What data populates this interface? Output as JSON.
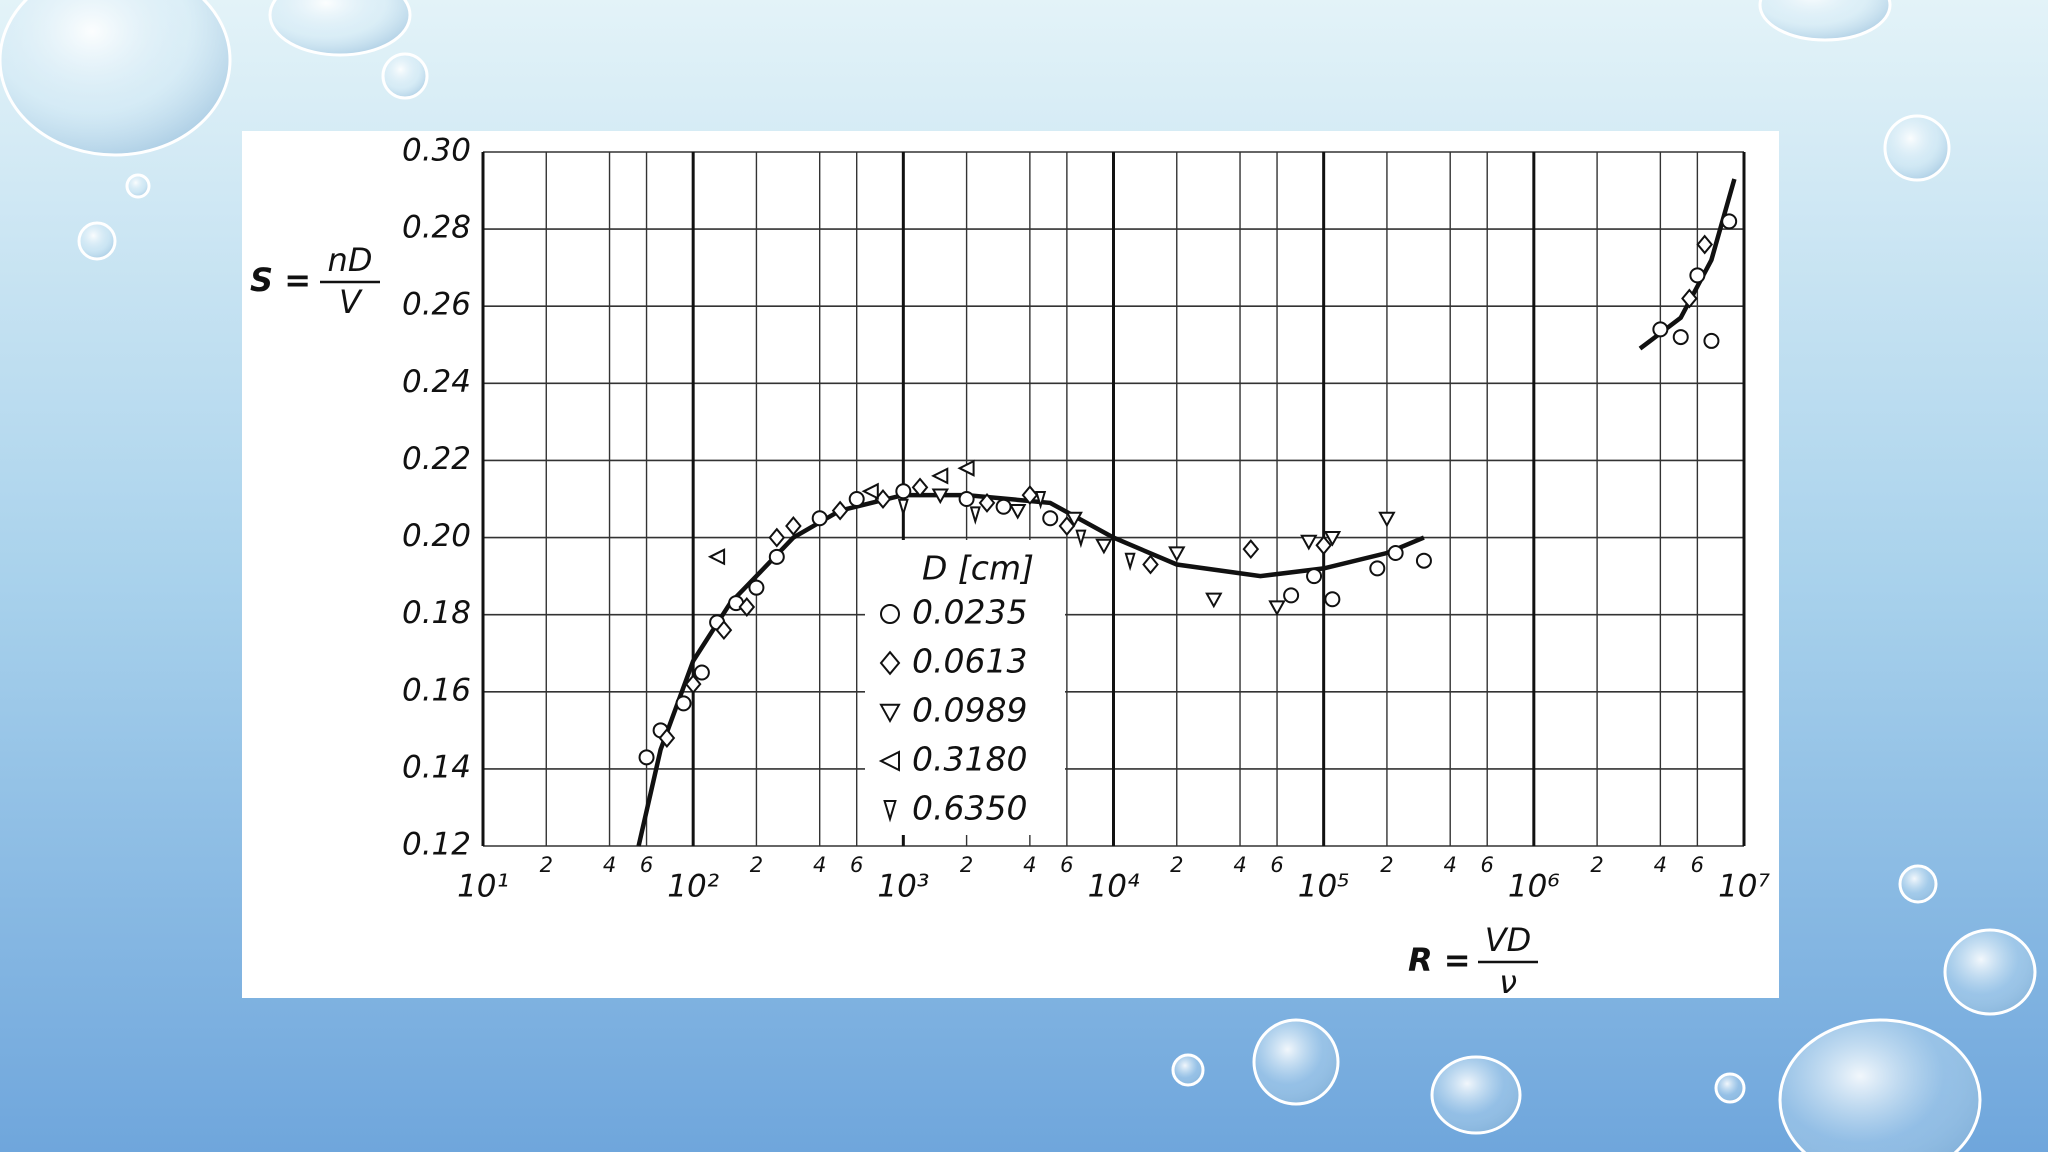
{
  "chart_data": {
    "type": "scatter",
    "xscale": "log",
    "grid": true,
    "xlim": [
      10,
      10000000
    ],
    "ylim": [
      0.12,
      0.3
    ],
    "yticks": [
      0.12,
      0.14,
      0.16,
      0.18,
      {
        "value": 0.2,
        "label": "0.20"
      },
      0.22,
      0.24,
      0.26,
      0.28,
      {
        "value": 0.3,
        "label": "0.30"
      }
    ],
    "xticks": [
      {
        "value": 10,
        "label": "10¹"
      },
      {
        "value": 100,
        "label": "10²"
      },
      {
        "value": 1000,
        "label": "10³"
      },
      {
        "value": 10000,
        "label": "10⁴"
      },
      {
        "value": 100000,
        "label": "10⁵"
      },
      {
        "value": 1000000,
        "label": "10⁶"
      },
      {
        "value": 10000000,
        "label": "10⁷"
      }
    ],
    "xminor_ticks": [
      {
        "value": 20,
        "label": "2"
      },
      {
        "value": 40,
        "label": "4"
      },
      {
        "value": 60,
        "label": "6"
      },
      {
        "value": 200,
        "label": "2"
      },
      {
        "value": 400,
        "label": "4"
      },
      {
        "value": 600,
        "label": "6"
      },
      {
        "value": 2000,
        "label": "2"
      },
      {
        "value": 4000,
        "label": "4"
      },
      {
        "value": 6000,
        "label": "6"
      },
      {
        "value": 20000,
        "label": "2"
      },
      {
        "value": 40000,
        "label": "4"
      },
      {
        "value": 60000,
        "label": "6"
      },
      {
        "value": 200000,
        "label": "2"
      },
      {
        "value": 400000,
        "label": "4"
      },
      {
        "value": 600000,
        "label": "6"
      },
      {
        "value": 2000000,
        "label": "2"
      },
      {
        "value": 4000000,
        "label": "4"
      },
      {
        "value": 6000000,
        "label": "6"
      }
    ],
    "ylabel": {
      "lhs": "S =",
      "num": "nD",
      "den": "V"
    },
    "xlabel": {
      "lhs": "R =",
      "num": "VD",
      "den": "ν"
    },
    "legend_title": "D [cm]",
    "series": [
      {
        "name": "0.0235",
        "marker": "circle",
        "color": "#111111",
        "x": [
          60,
          70,
          90,
          110,
          130,
          160,
          200,
          250,
          400,
          600,
          1000,
          2000,
          3000,
          5000,
          70000,
          90000,
          110000,
          180000,
          220000,
          300000,
          4000000,
          5000000,
          6000000,
          7000000,
          8500000
        ],
        "y": [
          0.143,
          0.15,
          0.157,
          0.165,
          0.178,
          0.183,
          0.187,
          0.195,
          0.205,
          0.21,
          0.212,
          0.21,
          0.208,
          0.205,
          0.185,
          0.19,
          0.184,
          0.192,
          0.196,
          0.194,
          0.254,
          0.252,
          0.268,
          0.251,
          0.282
        ]
      },
      {
        "name": "0.0613",
        "marker": "diamond",
        "color": "#111111",
        "x": [
          75,
          100,
          140,
          180,
          250,
          300,
          500,
          800,
          1200,
          2500,
          4000,
          6000,
          15000,
          45000,
          100000,
          5500000,
          6500000
        ],
        "y": [
          0.148,
          0.162,
          0.176,
          0.182,
          0.2,
          0.203,
          0.207,
          0.21,
          0.213,
          0.209,
          0.211,
          0.203,
          0.193,
          0.197,
          0.198,
          0.262,
          0.276
        ]
      },
      {
        "name": "0.0989",
        "marker": "triangle-down",
        "color": "#111111",
        "x": [
          1500,
          3500,
          6500,
          9000,
          20000,
          30000,
          60000,
          85000,
          110000,
          200000
        ],
        "y": [
          0.211,
          0.207,
          0.205,
          0.198,
          0.196,
          0.184,
          0.182,
          0.199,
          0.2,
          0.205
        ]
      },
      {
        "name": "0.3180",
        "marker": "triangle-left",
        "color": "#111111",
        "x": [
          130,
          700,
          1500,
          2000
        ],
        "y": [
          0.195,
          0.212,
          0.216,
          0.218
        ]
      },
      {
        "name": "0.6350",
        "marker": "triangle-down-narrow",
        "color": "#111111",
        "x": [
          1000,
          2200,
          4500,
          7000,
          12000
        ],
        "y": [
          0.208,
          0.206,
          0.21,
          0.2,
          0.194
        ]
      }
    ],
    "curve": {
      "color": "#111111",
      "x": [
        55,
        70,
        100,
        150,
        200,
        300,
        500,
        1000,
        2000,
        5000,
        10000,
        20000,
        50000,
        100000,
        200000,
        300000,
        null,
        3200000,
        5000000,
        7000000,
        9000000
      ],
      "y": [
        0.12,
        0.145,
        0.168,
        0.183,
        0.19,
        0.2,
        0.207,
        0.211,
        0.211,
        0.209,
        0.2,
        0.193,
        0.19,
        0.192,
        0.196,
        0.2,
        null,
        0.249,
        0.257,
        0.272,
        0.293
      ]
    }
  }
}
